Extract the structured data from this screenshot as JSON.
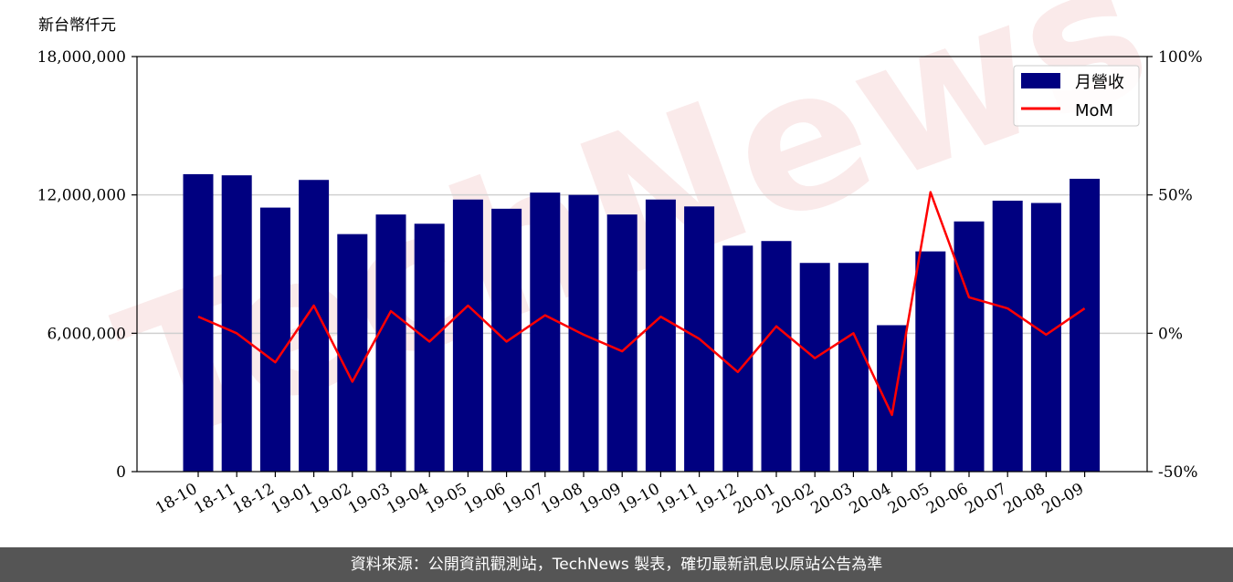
{
  "watermark": "TechNews",
  "unit_label": "新台幣仟元",
  "footer": {
    "text": "資料來源：公開資訊觀測站，TechNews 製表，確切最新訊息以原站公告為準"
  },
  "colors": {
    "bar": "#000080",
    "line": "#ff0000",
    "grid": "#d0d0d0",
    "footer_bg": "#555555"
  },
  "chart_data": {
    "type": "bar",
    "categories": [
      "18-10",
      "18-11",
      "18-12",
      "19-01",
      "19-02",
      "19-03",
      "19-04",
      "19-05",
      "19-06",
      "19-07",
      "19-08",
      "19-09",
      "19-10",
      "19-11",
      "19-12",
      "20-01",
      "20-02",
      "20-03",
      "20-04",
      "20-05",
      "20-06",
      "20-07",
      "20-08",
      "20-09"
    ],
    "series": [
      {
        "name": "月營收",
        "type": "bar",
        "axis": "left",
        "values": [
          12900000,
          12850000,
          11450000,
          12650000,
          10300000,
          11150000,
          10750000,
          11800000,
          11400000,
          12100000,
          12000000,
          11150000,
          11800000,
          11500000,
          9800000,
          10000000,
          9050000,
          9050000,
          6350000,
          9550000,
          10850000,
          11750000,
          11650000,
          12700000
        ]
      },
      {
        "name": "MoM",
        "type": "line",
        "axis": "right",
        "unit": "%",
        "values": [
          6,
          0,
          -10.5,
          10,
          -17.5,
          8,
          -3,
          10,
          -3,
          6.5,
          -0.5,
          -6.5,
          6,
          -2,
          -14,
          2.5,
          -9,
          0,
          -29.5,
          51,
          13,
          9,
          -0.5,
          9
        ]
      }
    ],
    "y_left": {
      "ylim": [
        0,
        18000000
      ],
      "ticks": [
        "0",
        "6,000,000",
        "12,000,000",
        "18,000,000"
      ],
      "tick_values": [
        0,
        6000000,
        12000000,
        18000000
      ]
    },
    "y_right": {
      "ylim": [
        -50,
        100
      ],
      "ticks": [
        "-50%",
        "0%",
        "50%",
        "100%"
      ],
      "tick_values": [
        -50,
        0,
        50,
        100
      ]
    },
    "grid": "horizontal",
    "legend": {
      "placement": "top-right",
      "entries": [
        "月營收",
        "MoM"
      ]
    }
  }
}
